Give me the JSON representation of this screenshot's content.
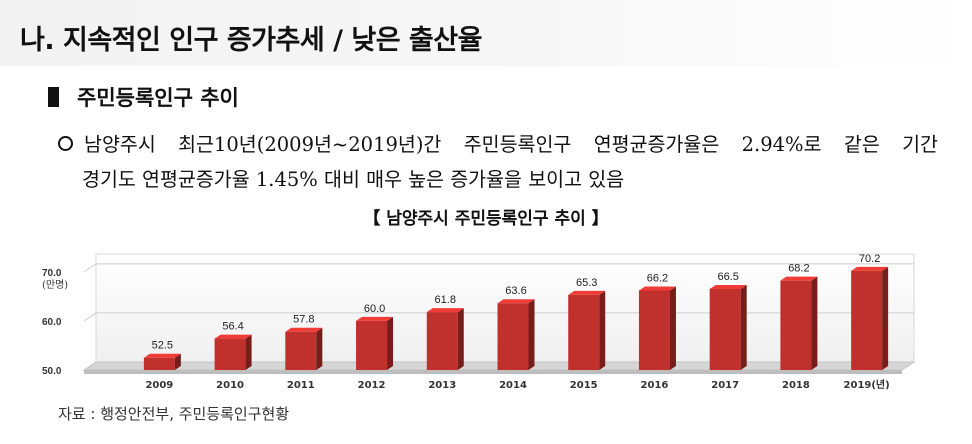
{
  "section": {
    "title": "나. 지속적인 인구 증가추세 / 낮은 출산율"
  },
  "subsection": {
    "title": "주민등록인구 추이"
  },
  "paragraph": {
    "line1": [
      "남양주시",
      "최근10년(2009년~2019년)간",
      "주민등록인구",
      "연평균증가율은",
      "2.94%로",
      "같은",
      "기간"
    ],
    "line2": "경기도 연평균증가율 1.45% 대비 매우 높은 증가율을 보이고 있음"
  },
  "chart_title": "【 남양주시 주민등록인구 추이 】",
  "source": "자료 : 행정안전부, 주민등록인구현황",
  "chart_data": {
    "type": "bar",
    "categories": [
      "2009",
      "2010",
      "2011",
      "2012",
      "2013",
      "2014",
      "2015",
      "2016",
      "2017",
      "2018",
      "2019(년)"
    ],
    "values": [
      52.5,
      56.4,
      57.8,
      60.0,
      61.8,
      63.6,
      65.3,
      66.2,
      66.5,
      68.2,
      70.2
    ],
    "value_labels": [
      "52.5",
      "56.4",
      "57.8",
      "60.0",
      "61.8",
      "63.6",
      "65.3",
      "66.2",
      "66.5",
      "68.2",
      "70.2"
    ],
    "y_ticks": [
      "50.0",
      "60.0",
      "70.0"
    ],
    "y_unit": "(만명)",
    "ylim": [
      50,
      72
    ],
    "grid": true,
    "bar_color": "#c0302c"
  }
}
